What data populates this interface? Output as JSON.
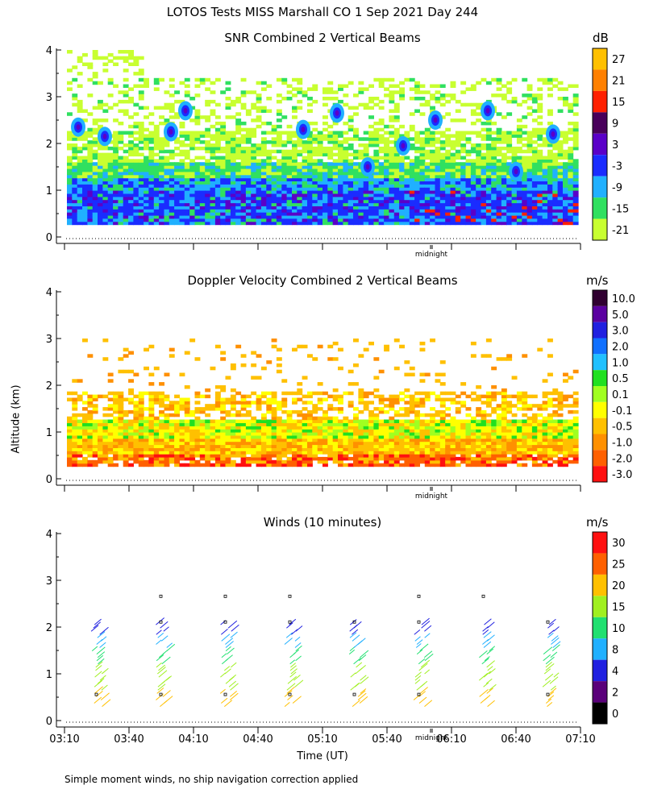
{
  "page": {
    "title": "LOTOS Tests MISS Marshall CO   1 Sep 2021 Day 244",
    "y_axis_label": "Altitude (km)",
    "x_axis_label": "Time (UT)",
    "footnote": "Simple moment winds, no ship navigation correction applied",
    "midnight_label": "midnight"
  },
  "chart_data": [
    {
      "type": "heatmap",
      "title": "SNR Combined 2 Vertical Beams",
      "unit": "dB",
      "ylim": [
        0,
        4
      ],
      "yticks": [
        "0",
        "1",
        "2",
        "3",
        "4"
      ],
      "colorbar_labels": [
        "27",
        "21",
        "15",
        "9",
        "3",
        "-3",
        "-9",
        "-15",
        "-21"
      ],
      "colorbar_colors": [
        "#ffc000",
        "#ff8000",
        "#ff2000",
        "#48005a",
        "#5a00c8",
        "#1a2cff",
        "#20b0ff",
        "#30e060",
        "#c8ff30"
      ],
      "color_bands_by_altitude": [
        {
          "from_km": 0.25,
          "to_km": 0.7,
          "color": "#1a2cff"
        },
        {
          "from_km": 0.7,
          "to_km": 1.0,
          "color": "#1a2cff"
        },
        {
          "from_km": 1.0,
          "to_km": 1.3,
          "color": "#20b0ff"
        },
        {
          "from_km": 1.3,
          "to_km": 1.6,
          "color": "#30e060"
        },
        {
          "from_km": 1.6,
          "to_km": 2.2,
          "color": "#c8ff30"
        }
      ]
    },
    {
      "type": "heatmap",
      "title": "Doppler Velocity Combined 2 Vertical Beams",
      "unit": "m/s",
      "ylim": [
        0,
        4
      ],
      "yticks": [
        "0",
        "1",
        "2",
        "3",
        "4"
      ],
      "colorbar_labels": [
        "10.0",
        "5.0",
        "3.0",
        "2.0",
        "1.0",
        "0.5",
        "0.1",
        "-0.1",
        "-0.5",
        "-1.0",
        "-2.0",
        "-3.0"
      ],
      "colorbar_colors": [
        "#300030",
        "#5a00a0",
        "#2020e0",
        "#1070ff",
        "#20c0ff",
        "#20e020",
        "#a0ff20",
        "#ffff00",
        "#ffc000",
        "#ff9000",
        "#ff6000",
        "#ff1010"
      ],
      "color_bands_by_altitude": [
        {
          "from_km": 0.3,
          "to_km": 0.55,
          "color": "#ff6000"
        },
        {
          "from_km": 0.55,
          "to_km": 0.9,
          "color": "#ffc000"
        },
        {
          "from_km": 0.9,
          "to_km": 1.3,
          "color": "#ffff00"
        },
        {
          "from_km": 1.3,
          "to_km": 1.8,
          "color": "#ffc000"
        }
      ]
    },
    {
      "type": "scatter",
      "title": "Winds (10 minutes)",
      "unit": "m/s",
      "ylim": [
        0,
        4
      ],
      "yticks": [
        "0",
        "1",
        "2",
        "3",
        "4"
      ],
      "xlabel": "Time (UT)",
      "xticks": [
        "03:10",
        "03:40",
        "04:10",
        "04:40",
        "05:10",
        "05:40",
        "06:10",
        "06:40",
        "07:10"
      ],
      "colorbar_labels": [
        "30",
        "25",
        "20",
        "15",
        "10",
        "8",
        "4",
        "2",
        "0"
      ],
      "colorbar_colors": [
        "#ff1010",
        "#ff6000",
        "#ffc000",
        "#a0f020",
        "#20e070",
        "#20b0ff",
        "#2020e0",
        "#5a007a",
        "#000000"
      ],
      "profile_times": [
        "03:25",
        "03:55",
        "04:25",
        "04:55",
        "05:25",
        "05:55",
        "06:25",
        "06:55"
      ]
    }
  ]
}
